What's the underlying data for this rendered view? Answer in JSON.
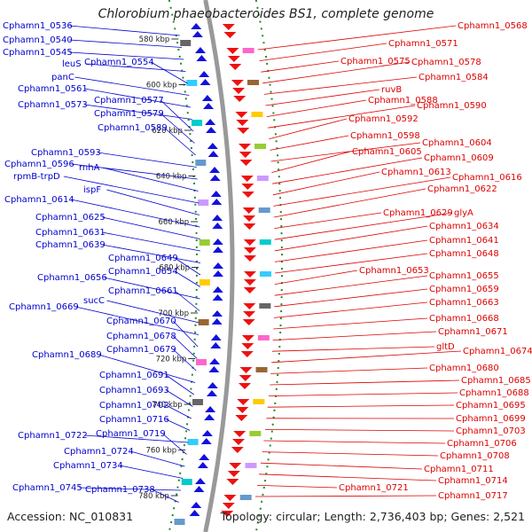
{
  "title": "Chlorobium phaeobacteroides BS1, complete genome",
  "footer": {
    "accession": "Accession: NC_010831",
    "topology": "Topology: circular; Length: 2,736,403 bp; Genes: 2,521"
  },
  "colors": {
    "left_label": "#0000cc",
    "right_label": "#dd0000",
    "backbone": "#999999",
    "dashed_ring": "#228b22",
    "forward_arrow": "#1111dd",
    "reverse_arrow": "#ee1111"
  },
  "ticks": [
    "580 kbp",
    "600 kbp",
    "620 kbp",
    "640 kbp",
    "660 kbp",
    "680 kbp",
    "700 kbp",
    "720 kbp",
    "740 kbp",
    "760 kbp",
    "780 kbp"
  ],
  "left_labels": [
    "Cphamn1_0536",
    "Cphamn1_0540",
    "Cphamn1_0545",
    "leuS",
    "Cphamn1_0554",
    "panC",
    "Cphamn1_0561",
    "Cphamn1_0573",
    "Cphamn1_0577",
    "Cphamn1_0579",
    "Cphamn1_0589",
    "Cphamn1_0593",
    "Cphamn1_0596",
    "rnhA",
    "rpmB-trpD",
    "ispF",
    "Cphamn1_0614",
    "Cphamn1_0625",
    "Cphamn1_0631",
    "Cphamn1_0639",
    "Cphamn1_0649",
    "Cphamn1_0654",
    "Cphamn1_0656",
    "Cphamn1_0661",
    "sucC",
    "Cphamn1_0669",
    "Cphamn1_0670",
    "Cphamn1_0678",
    "Cphamn1_0679",
    "Cphamn1_0689",
    "Cphamn1_0691",
    "Cphamn1_0693",
    "Cphamn1_0702",
    "Cphamn1_0716",
    "Cphamn1_0722",
    "Cphamn1_0719",
    "Cphamn1_0724",
    "Cphamn1_0734",
    "Cphamn1_0745",
    "Cphamn1_0738"
  ],
  "right_labels": [
    "Cphamn1_0568",
    "Cphamn1_0571",
    "Cphamn1_0575",
    "Cphamn1_0578",
    "Cphamn1_0584",
    "ruvB",
    "Cphamn1_0588",
    "Cphamn1_0590",
    "Cphamn1_0592",
    "Cphamn1_0598",
    "Cphamn1_0604",
    "Cphamn1_0605",
    "Cphamn1_0609",
    "Cphamn1_0613",
    "Cphamn1_0616",
    "Cphamn1_0622",
    "Cphamn1_0629",
    "glyA",
    "Cphamn1_0634",
    "Cphamn1_0641",
    "Cphamn1_0648",
    "Cphamn1_0653",
    "Cphamn1_0655",
    "Cphamn1_0659",
    "Cphamn1_0663",
    "Cphamn1_0668",
    "Cphamn1_0671",
    "gltD",
    "Cphamn1_0674",
    "Cphamn1_0680",
    "Cphamn1_0685",
    "Cphamn1_0688",
    "Cphamn1_0695",
    "Cphamn1_0699",
    "Cphamn1_0703",
    "Cphamn1_0706",
    "Cphamn1_0708",
    "Cphamn1_0711",
    "Cphamn1_0714",
    "Cphamn1_0721",
    "Cphamn1_0717"
  ]
}
